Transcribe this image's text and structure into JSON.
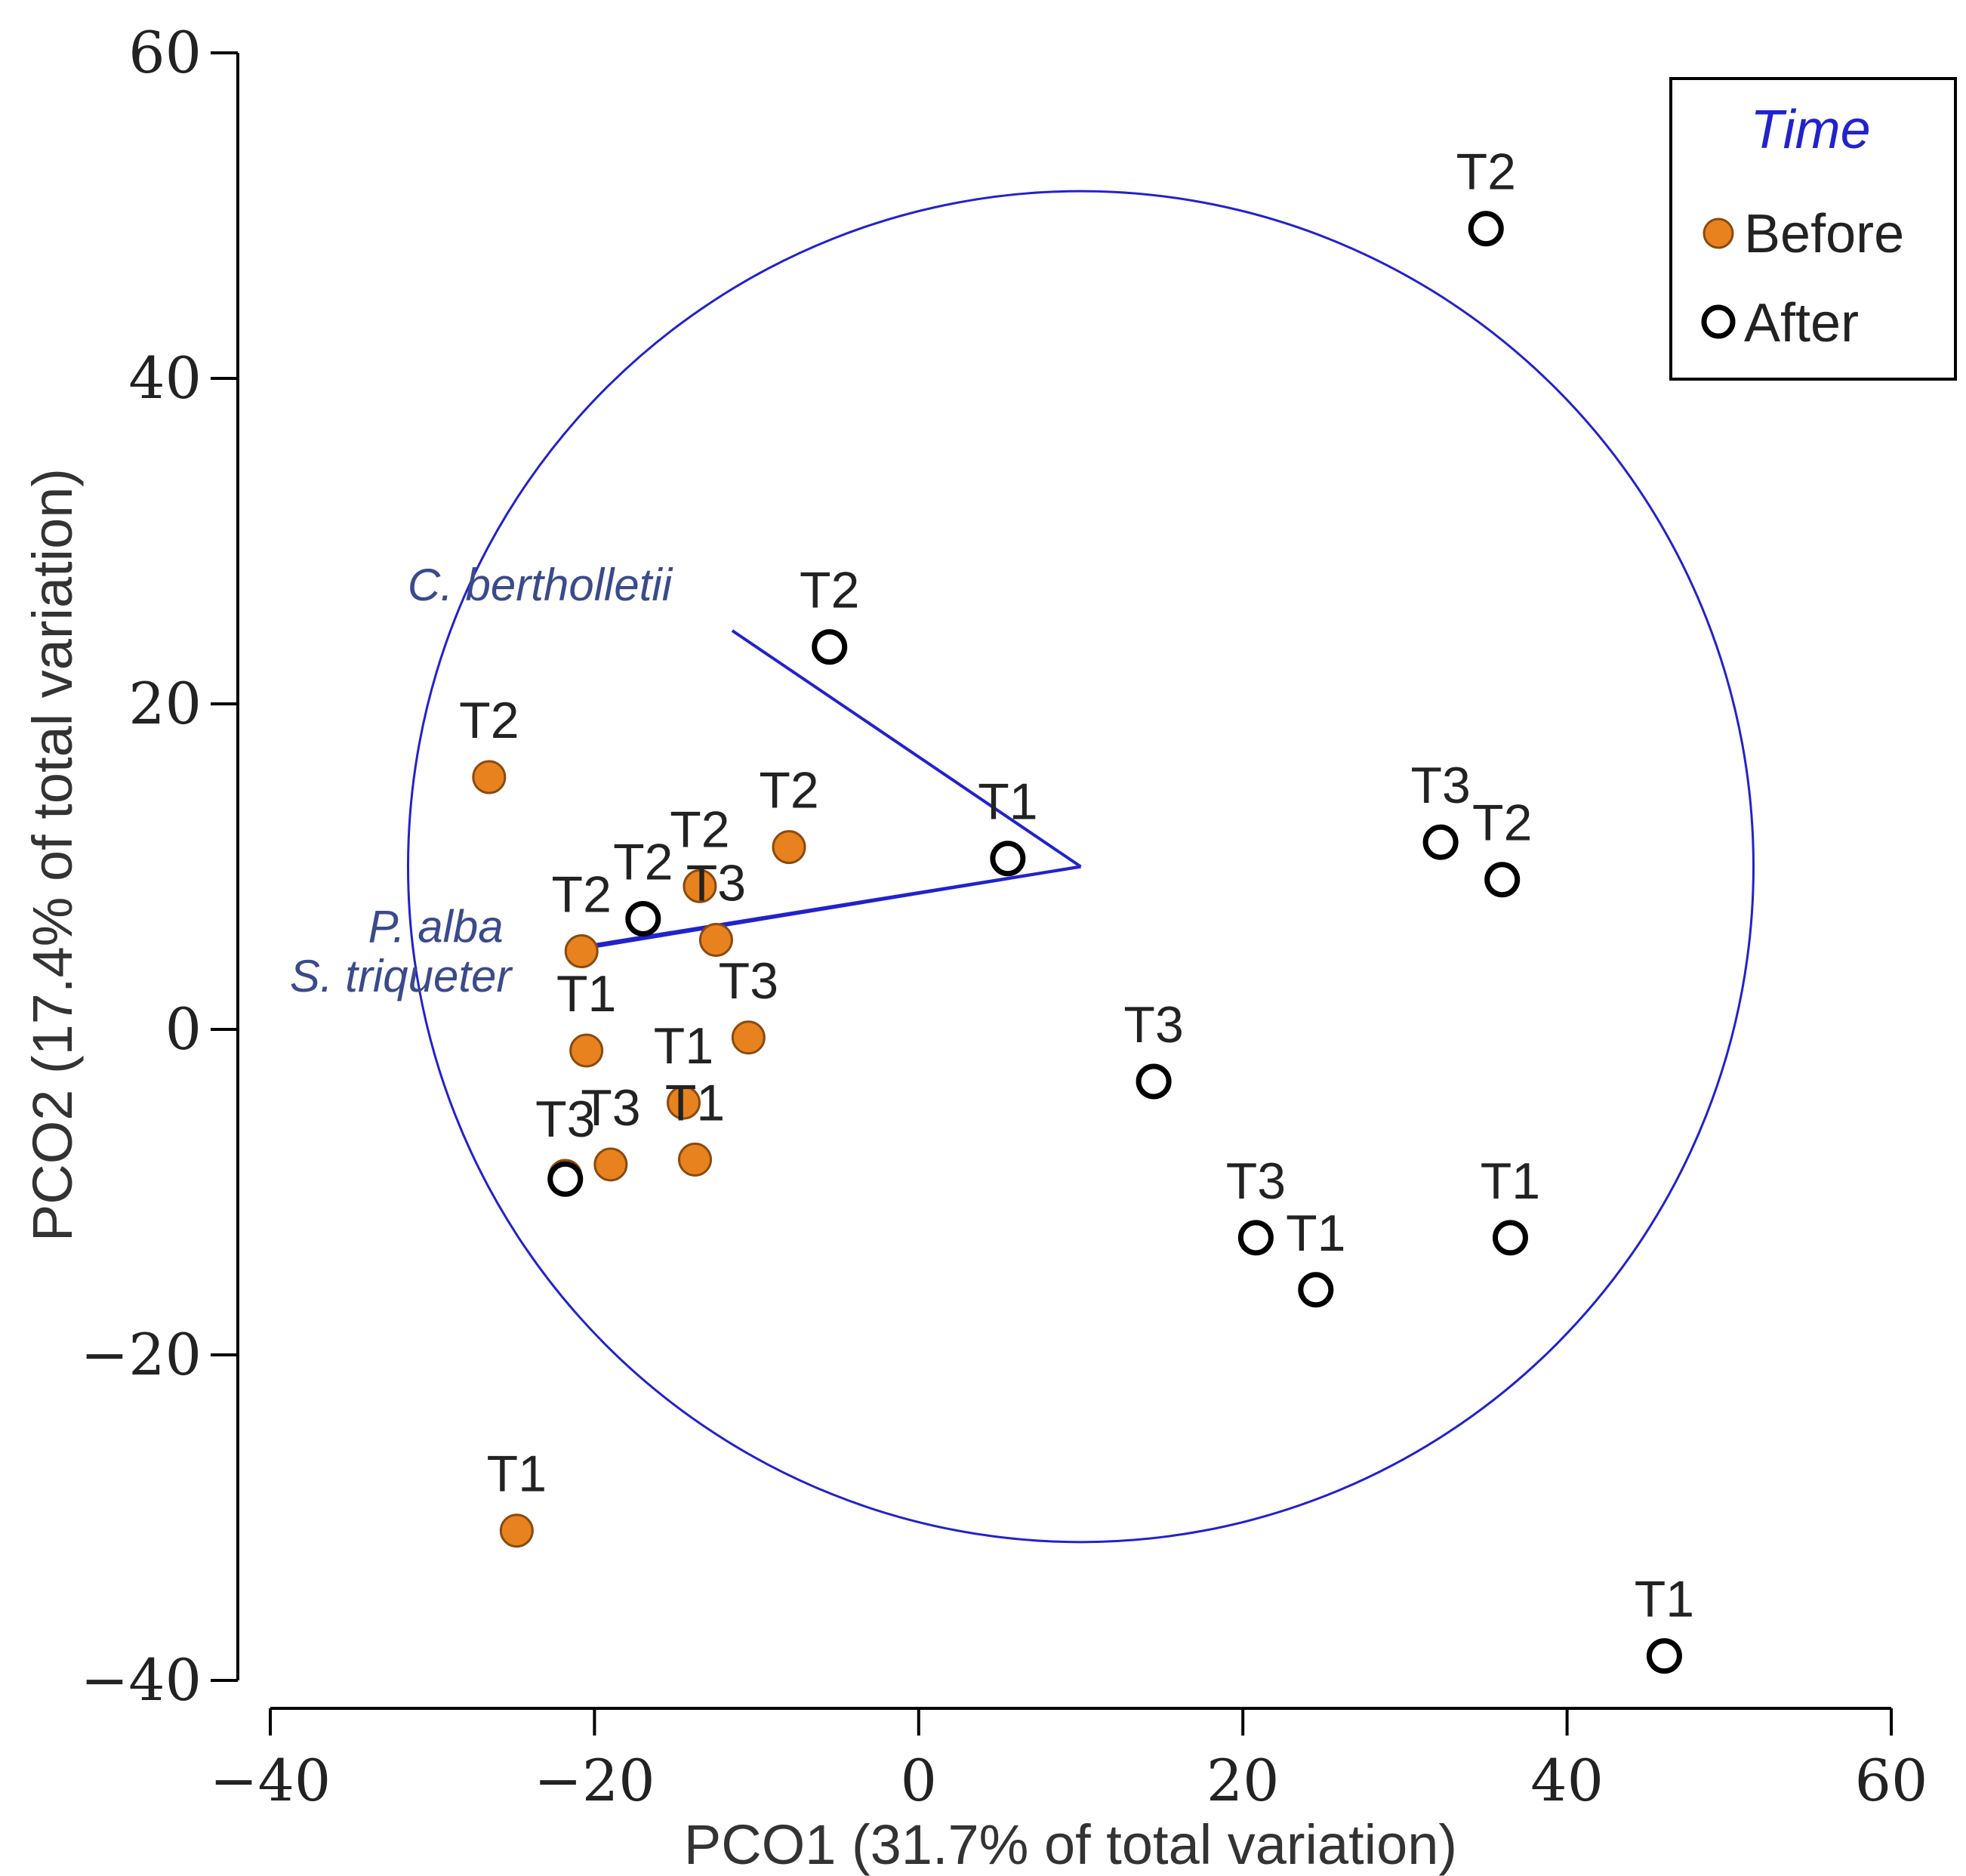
{
  "chart_data": {
    "type": "scatter",
    "title": "",
    "xlabel": "PCO1 (31.7% of total variation)",
    "ylabel": "PCO2 (17.4% of total variation)",
    "xlim": [
      -40,
      60
    ],
    "ylim": [
      -40,
      60
    ],
    "xticks": [
      -40,
      -20,
      0,
      20,
      40,
      60
    ],
    "yticks": [
      -40,
      -20,
      0,
      20,
      40,
      60
    ],
    "xtick_labels": [
      "−40",
      "−20",
      "0",
      "20",
      "40",
      "60"
    ],
    "ytick_labels": [
      "−40",
      "−20",
      "0",
      "20",
      "40",
      "60"
    ],
    "legend": {
      "title": "Time",
      "position": "top-right",
      "entries": [
        {
          "label": "Before",
          "marker": "filled-circle",
          "color": "#E8821E"
        },
        {
          "label": "After",
          "marker": "open-circle",
          "color": "#000000"
        }
      ]
    },
    "series": [
      {
        "name": "Before",
        "color": "#E8821E",
        "points": [
          {
            "x": -26.5,
            "y": 15.5,
            "label": "T2"
          },
          {
            "x": -8.0,
            "y": 11.2,
            "label": "T2"
          },
          {
            "x": -13.5,
            "y": 8.8,
            "label": "T2"
          },
          {
            "x": -20.8,
            "y": 4.8,
            "label": "T2"
          },
          {
            "x": -12.5,
            "y": 5.5,
            "label": "T3"
          },
          {
            "x": -20.5,
            "y": -1.3,
            "label": "T1"
          },
          {
            "x": -10.5,
            "y": -0.5,
            "label": "T3"
          },
          {
            "x": -14.5,
            "y": -4.5,
            "label": "T1"
          },
          {
            "x": -19.0,
            "y": -8.3,
            "label": "T3"
          },
          {
            "x": -13.8,
            "y": -8.0,
            "label": "T1"
          },
          {
            "x": -21.8,
            "y": -9.0,
            "label": "T3"
          },
          {
            "x": -24.8,
            "y": -30.8,
            "label": "T1"
          }
        ]
      },
      {
        "name": "After",
        "color": "#000000",
        "points": [
          {
            "x": 35.0,
            "y": 49.2,
            "label": "T2"
          },
          {
            "x": -5.5,
            "y": 23.5,
            "label": "T2"
          },
          {
            "x": 5.5,
            "y": 10.5,
            "label": "T1"
          },
          {
            "x": -17.0,
            "y": 6.8,
            "label": "T2"
          },
          {
            "x": 32.2,
            "y": 11.5,
            "label": "T3"
          },
          {
            "x": 36.0,
            "y": 9.2,
            "label": "T2"
          },
          {
            "x": 14.5,
            "y": -3.2,
            "label": "T3"
          },
          {
            "x": 20.8,
            "y": -12.8,
            "label": "T3"
          },
          {
            "x": 24.5,
            "y": -16.0,
            "label": "T1"
          },
          {
            "x": 36.5,
            "y": -12.8,
            "label": "T1"
          },
          {
            "x": -21.8,
            "y": -9.2,
            "label": ""
          },
          {
            "x": 46.0,
            "y": -38.5,
            "label": "T1"
          }
        ]
      }
    ],
    "correlation_circle": {
      "center": [
        10,
        10
      ],
      "radius": 41.5,
      "color": "#2222cc"
    },
    "vectors": [
      {
        "name": "C. bertholletii",
        "x": -11.5,
        "y": 24.5
      },
      {
        "name": "P. alba",
        "x": -20.5,
        "y": 5.0
      },
      {
        "name": "S. triqueter",
        "x": -20.0,
        "y": 5.2
      }
    ],
    "vector_labels": [
      "C. bertholletii",
      "P. alba",
      "S. triqueter"
    ]
  }
}
